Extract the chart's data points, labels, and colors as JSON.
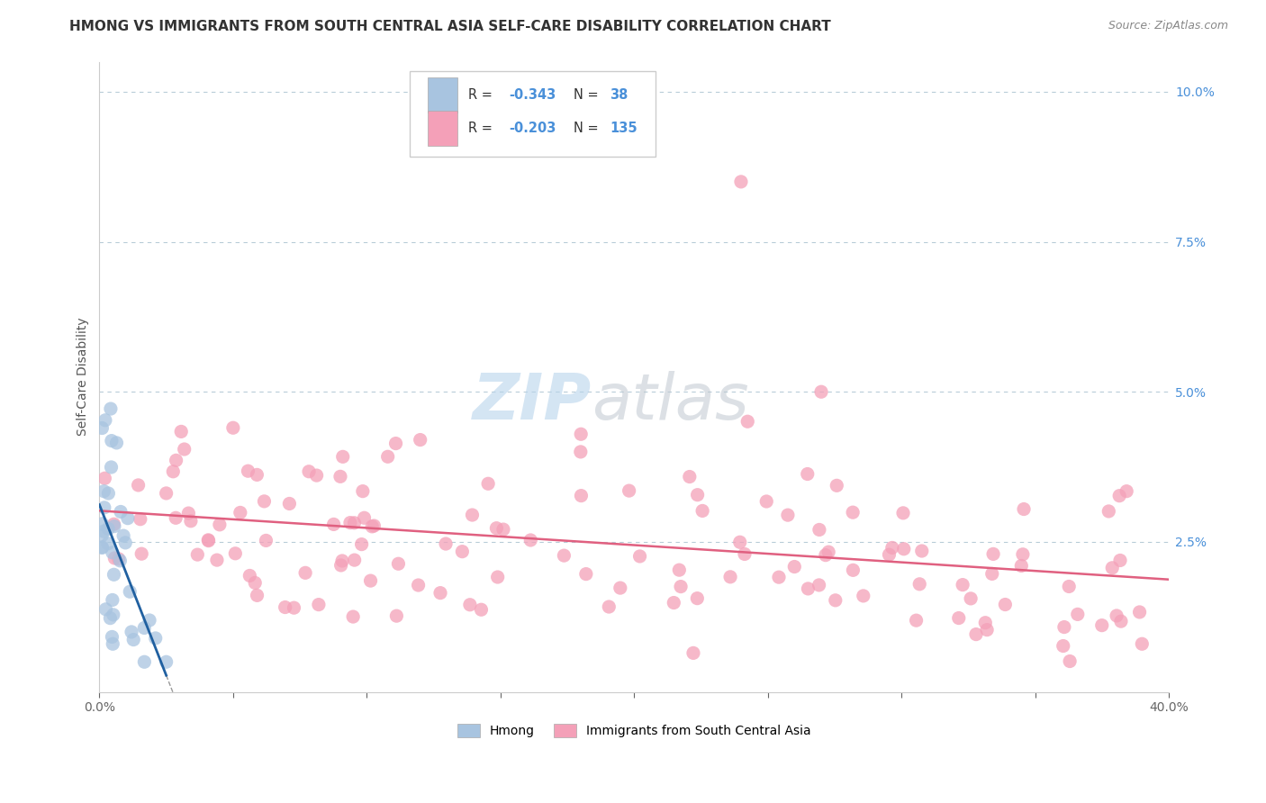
{
  "title": "HMONG VS IMMIGRANTS FROM SOUTH CENTRAL ASIA SELF-CARE DISABILITY CORRELATION CHART",
  "source": "Source: ZipAtlas.com",
  "ylabel": "Self-Care Disability",
  "xlim": [
    0.0,
    0.4
  ],
  "ylim": [
    0.0,
    0.105
  ],
  "hmong_color": "#a8c4e0",
  "sca_color": "#f4a0b8",
  "hmong_line_color": "#2060a0",
  "sca_line_color": "#e06080",
  "R_hmong": -0.343,
  "N_hmong": 38,
  "R_sca": -0.203,
  "N_sca": 135,
  "legend_label_hmong": "Hmong",
  "legend_label_sca": "Immigrants from South Central Asia",
  "background_color": "#ffffff",
  "grid_color": "#b8ccd8",
  "title_color": "#333333",
  "title_fontsize": 11,
  "axis_color": "#4a90d9",
  "r_text_color": "#4a90d9"
}
